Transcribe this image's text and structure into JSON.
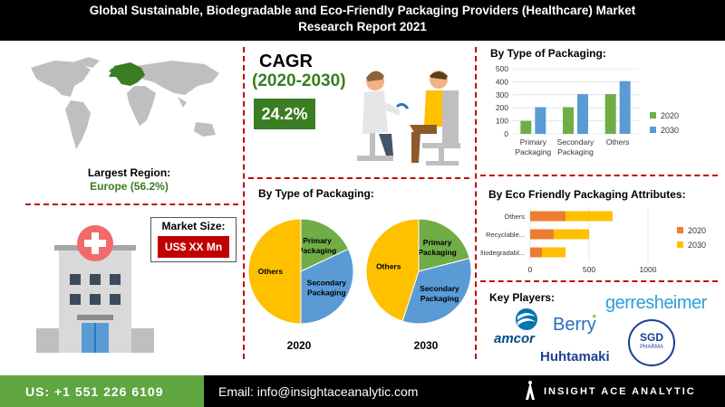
{
  "header": {
    "title_line1": "Global Sustainable, Biodegradable and Eco-Friendly Packaging Providers (Healthcare) Market",
    "title_line2": "Research Report 2021"
  },
  "region": {
    "label": "Largest Region:",
    "value": "Europe (56.2%)"
  },
  "market_size": {
    "label": "Market Size:",
    "value": "US$ XX Mn"
  },
  "cagr": {
    "label": "CAGR",
    "period": "(2020-2030)",
    "value": "24.2%"
  },
  "sections": {
    "bar_title": "By Type of Packaging:",
    "pie_title": "By Type of Packaging:",
    "hbar_title": "By Eco Friendly Packaging Attributes:",
    "players_title": "Key Players:"
  },
  "players": [
    "amcor",
    "Berry",
    "gerresheimer",
    "Huhtamaki",
    "SGD",
    "PHARMA"
  ],
  "footer": {
    "phone": "US: +1 551 226 6109",
    "email": "Email: info@insightaceanalytic.com",
    "brand": "INSIGHT ACE ANALYTIC"
  },
  "colors": {
    "green": "#70ad47",
    "blue": "#5b9bd5",
    "orange": "#ed7d31",
    "yellow": "#ffc000",
    "accent_red": "#c00000"
  },
  "chart_data": [
    {
      "type": "bar",
      "title": "By Type of Packaging:",
      "categories": [
        "Primary Packaging",
        "Secondary Packaging",
        "Others"
      ],
      "category_lines": [
        [
          "Primary",
          "Packaging"
        ],
        [
          "Secondary",
          "Packaging"
        ],
        [
          "Others"
        ]
      ],
      "series": [
        {
          "name": "2020",
          "values": [
            100,
            205,
            305
          ],
          "color": "#70ad47"
        },
        {
          "name": "2030",
          "values": [
            205,
            305,
            405
          ],
          "color": "#5b9bd5"
        }
      ],
      "ylim": [
        0,
        500
      ],
      "yticks": [
        "0",
        "100",
        "200",
        "300",
        "400",
        "500"
      ],
      "legend": "right"
    },
    {
      "type": "pie",
      "title": "2020",
      "slices": [
        {
          "label": "Primary Packaging",
          "lines": [
            "Primary",
            "Packaging"
          ],
          "value": 18,
          "color": "#70ad47"
        },
        {
          "label": "Secondary Packaging",
          "lines": [
            "Secondary",
            "Packaging"
          ],
          "value": 32,
          "color": "#5b9bd5"
        },
        {
          "label": "Others",
          "lines": [
            "Others"
          ],
          "value": 50,
          "color": "#ffc000"
        }
      ]
    },
    {
      "type": "pie",
      "title": "2030",
      "slices": [
        {
          "label": "Primary Packaging",
          "lines": [
            "Primary",
            "Packaging"
          ],
          "value": 21,
          "color": "#70ad47"
        },
        {
          "label": "Secondary Packaging",
          "lines": [
            "Secondary",
            "Packaging"
          ],
          "value": 34,
          "color": "#5b9bd5"
        },
        {
          "label": "Others",
          "lines": [
            "Others"
          ],
          "value": 45,
          "color": "#ffc000"
        }
      ]
    },
    {
      "type": "bar",
      "orientation": "horizontal",
      "stacked": true,
      "title": "By Eco Friendly Packaging Attributes:",
      "categories": [
        "Others",
        "Recyclable...",
        "Biodegradabl..."
      ],
      "series": [
        {
          "name": "2020",
          "values": [
            300,
            200,
            100
          ],
          "color": "#ed7d31"
        },
        {
          "name": "2030",
          "values": [
            400,
            300,
            200
          ],
          "color": "#ffc000"
        }
      ],
      "xlim": [
        0,
        1000
      ],
      "xticks": [
        "0",
        "500",
        "1000"
      ],
      "legend": "right"
    }
  ]
}
